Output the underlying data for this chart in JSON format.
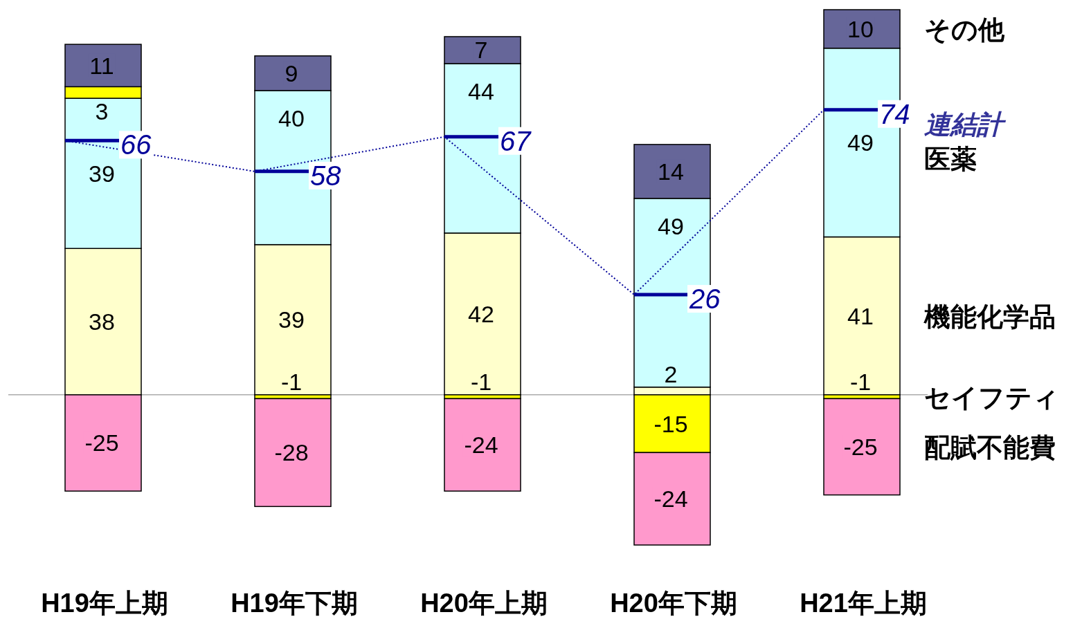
{
  "chart_data": {
    "type": "bar",
    "stacked": true,
    "data_labels": true,
    "legend": "right",
    "categories": [
      "H19年上期",
      "H19年下期",
      "H20年上期",
      "H20年下期",
      "H21年上期"
    ],
    "series": [
      {
        "name": "機能化学品",
        "color": "#ffffcc",
        "values": [
          38,
          39,
          42,
          2,
          41
        ]
      },
      {
        "name": "医薬",
        "color": "#ccffff",
        "values": [
          39,
          40,
          44,
          49,
          49
        ]
      },
      {
        "name": "セイフティ",
        "color": "#ffff00",
        "values": [
          3,
          -1,
          -1,
          -15,
          -1
        ]
      },
      {
        "name": "その他",
        "color": "#666699",
        "values": [
          11,
          9,
          7,
          14,
          10
        ]
      },
      {
        "name": "配賦不能費",
        "color": "#ff99cc",
        "values": [
          -25,
          -28,
          -24,
          -24,
          -25
        ]
      },
      {
        "name": "連結計",
        "type": "line",
        "color": "#000099",
        "line_style": "dotted",
        "values": [
          66,
          58,
          67,
          26,
          74
        ]
      }
    ]
  }
}
